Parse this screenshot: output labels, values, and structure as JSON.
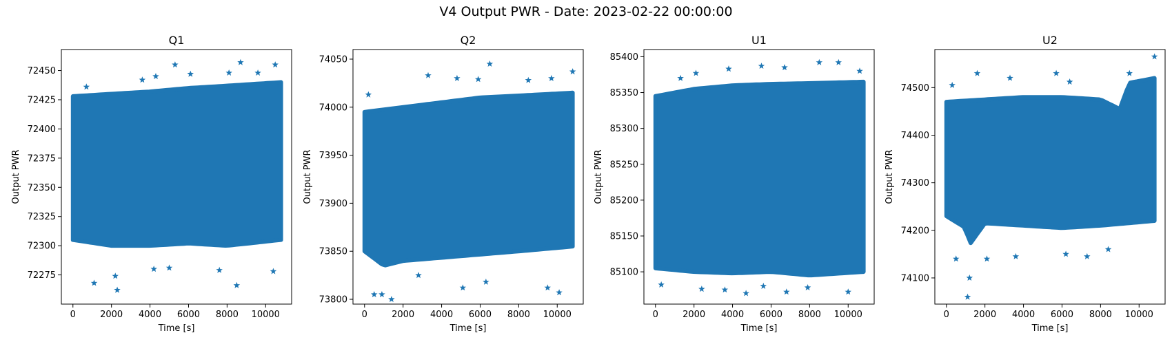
{
  "figure": {
    "title": "V4 Output PWR - Date: 2023-02-22 00:00:00",
    "marker_color": "#1f77b4"
  },
  "chart_data": [
    {
      "type": "scatter",
      "marker": "star",
      "title": "Q1",
      "xlabel": "Time [s]",
      "ylabel": "Output PWR",
      "xlim": [
        -600,
        11350
      ],
      "ylim": [
        72250,
        72468
      ],
      "xticks": [
        0,
        2000,
        4000,
        6000,
        8000,
        10000
      ],
      "yticks": [
        72275,
        72300,
        72325,
        72350,
        72375,
        72400,
        72425,
        72450
      ],
      "x_range": [
        0,
        10800
      ],
      "band_center": 72365,
      "band_upper": [
        [
          0,
          72428
        ],
        [
          2000,
          72430
        ],
        [
          4000,
          72432
        ],
        [
          6000,
          72435
        ],
        [
          8000,
          72437
        ],
        [
          10800,
          72440
        ]
      ],
      "band_lower": [
        [
          0,
          72305
        ],
        [
          2000,
          72300
        ],
        [
          4000,
          72300
        ],
        [
          6000,
          72302
        ],
        [
          8000,
          72300
        ],
        [
          10800,
          72305
        ]
      ],
      "outliers_high": [
        [
          5300,
          72455
        ],
        [
          8700,
          72457
        ],
        [
          10500,
          72455
        ],
        [
          6100,
          72447
        ],
        [
          4300,
          72445
        ],
        [
          8100,
          72448
        ],
        [
          9600,
          72448
        ],
        [
          700,
          72436
        ],
        [
          3600,
          72442
        ]
      ],
      "outliers_low": [
        [
          2300,
          72262
        ],
        [
          1100,
          72268
        ],
        [
          8500,
          72266
        ],
        [
          2200,
          72274
        ],
        [
          4200,
          72280
        ],
        [
          10400,
          72278
        ],
        [
          5000,
          72281
        ],
        [
          7600,
          72279
        ]
      ]
    },
    {
      "type": "scatter",
      "marker": "star",
      "title": "Q2",
      "xlabel": "Time [s]",
      "ylabel": "Output PWR",
      "xlim": [
        -600,
        11350
      ],
      "ylim": [
        73795,
        74060
      ],
      "xticks": [
        0,
        2000,
        4000,
        6000,
        8000,
        10000
      ],
      "yticks": [
        73800,
        73850,
        73900,
        73950,
        74000,
        74050
      ],
      "x_range": [
        0,
        10800
      ],
      "band_center": 73920,
      "band_upper": [
        [
          0,
          73995
        ],
        [
          2000,
          74000
        ],
        [
          4000,
          74005
        ],
        [
          6000,
          74010
        ],
        [
          8000,
          74012
        ],
        [
          10800,
          74015
        ]
      ],
      "band_lower": [
        [
          0,
          73850
        ],
        [
          1000,
          73835
        ],
        [
          2000,
          73840
        ],
        [
          5000,
          73845
        ],
        [
          8000,
          73850
        ],
        [
          10800,
          73855
        ]
      ],
      "outliers_high": [
        [
          6500,
          74045
        ],
        [
          10800,
          74037
        ],
        [
          3300,
          74033
        ],
        [
          4800,
          74030
        ],
        [
          9700,
          74030
        ],
        [
          200,
          74013
        ],
        [
          5900,
          74029
        ],
        [
          8500,
          74028
        ]
      ],
      "outliers_low": [
        [
          1400,
          73800
        ],
        [
          900,
          73805
        ],
        [
          500,
          73805
        ],
        [
          5100,
          73812
        ],
        [
          9500,
          73812
        ],
        [
          10100,
          73807
        ],
        [
          2800,
          73825
        ],
        [
          6300,
          73818
        ]
      ]
    },
    {
      "type": "scatter",
      "marker": "star",
      "title": "U1",
      "xlabel": "Time [s]",
      "ylabel": "Output PWR",
      "xlim": [
        -600,
        11350
      ],
      "ylim": [
        85055,
        85410
      ],
      "xticks": [
        0,
        2000,
        4000,
        6000,
        8000,
        10000
      ],
      "yticks": [
        85100,
        85150,
        85200,
        85250,
        85300,
        85350,
        85400
      ],
      "x_range": [
        0,
        10800
      ],
      "band_center": 85230,
      "band_upper": [
        [
          0,
          85345
        ],
        [
          2000,
          85355
        ],
        [
          4000,
          85360
        ],
        [
          6000,
          85362
        ],
        [
          8000,
          85363
        ],
        [
          10800,
          85365
        ]
      ],
      "band_lower": [
        [
          0,
          85105
        ],
        [
          2000,
          85100
        ],
        [
          4000,
          85098
        ],
        [
          6000,
          85100
        ],
        [
          8000,
          85095
        ],
        [
          10800,
          85100
        ]
      ],
      "outliers_high": [
        [
          8500,
          85392
        ],
        [
          9500,
          85392
        ],
        [
          5500,
          85387
        ],
        [
          6700,
          85385
        ],
        [
          3800,
          85383
        ],
        [
          10600,
          85380
        ],
        [
          2100,
          85377
        ],
        [
          1300,
          85370
        ]
      ],
      "outliers_low": [
        [
          4700,
          85070
        ],
        [
          10000,
          85072
        ],
        [
          6800,
          85072
        ],
        [
          3600,
          85075
        ],
        [
          2400,
          85076
        ],
        [
          300,
          85082
        ],
        [
          7900,
          85078
        ],
        [
          5600,
          85080
        ]
      ]
    },
    {
      "type": "scatter",
      "marker": "star",
      "title": "U2",
      "xlabel": "Time [s]",
      "ylabel": "Output PWR",
      "xlim": [
        -600,
        11350
      ],
      "ylim": [
        74045,
        74580
      ],
      "xticks": [
        0,
        2000,
        4000,
        6000,
        8000,
        10000
      ],
      "yticks": [
        74100,
        74200,
        74300,
        74400,
        74500
      ],
      "x_range": [
        0,
        10800
      ],
      "band_center": 74330,
      "band_upper": [
        [
          0,
          74470
        ],
        [
          2000,
          74475
        ],
        [
          4000,
          74480
        ],
        [
          6000,
          74480
        ],
        [
          8000,
          74475
        ],
        [
          9000,
          74455
        ],
        [
          9500,
          74510
        ],
        [
          10800,
          74520
        ]
      ],
      "band_lower": [
        [
          0,
          74230
        ],
        [
          1000,
          74205
        ],
        [
          1200,
          74170
        ],
        [
          2000,
          74215
        ],
        [
          4000,
          74210
        ],
        [
          6000,
          74205
        ],
        [
          8000,
          74210
        ],
        [
          10800,
          74220
        ]
      ],
      "outliers_high": [
        [
          10800,
          74565
        ],
        [
          1600,
          74530
        ],
        [
          300,
          74505
        ],
        [
          5700,
          74530
        ],
        [
          9500,
          74530
        ],
        [
          6400,
          74512
        ],
        [
          3300,
          74520
        ]
      ],
      "outliers_low": [
        [
          1100,
          74060
        ],
        [
          1200,
          74100
        ],
        [
          2100,
          74140
        ],
        [
          500,
          74140
        ],
        [
          3600,
          74145
        ],
        [
          6200,
          74150
        ],
        [
          7300,
          74145
        ],
        [
          8400,
          74160
        ]
      ]
    }
  ]
}
